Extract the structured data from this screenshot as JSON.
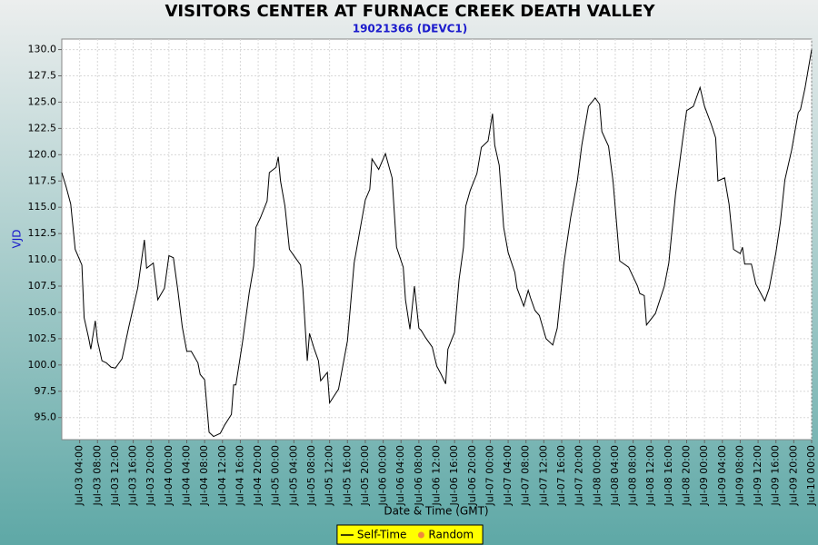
{
  "chart_data": {
    "type": "line",
    "title": "VISITORS CENTER AT FURNACE CREEK DEATH VALLEY",
    "subtitle": "19021366 (DEVC1)",
    "x_label": "Date & Time (GMT)",
    "y_label": "VJD",
    "x": [
      "Jul-03 00:00",
      "Jul-03 01:00",
      "Jul-03 02:00",
      "Jul-03 03:00",
      "Jul-03 04:30",
      "Jul-03 05:00",
      "Jul-03 06:00",
      "Jul-03 06:30",
      "Jul-03 07:30",
      "Jul-03 08:00",
      "Jul-03 09:00",
      "Jul-03 10:00",
      "Jul-03 11:00",
      "Jul-03 12:00",
      "Jul-03 13:30",
      "Jul-03 15:00",
      "Jul-03 17:00",
      "Jul-03 18:30",
      "Jul-03 19:00",
      "Jul-03 20:30",
      "Jul-03 21:30",
      "Jul-03 23:00",
      "Jul-04 00:00",
      "Jul-04 01:00",
      "Jul-04 02:00",
      "Jul-04 03:00",
      "Jul-04 04:00",
      "Jul-04 05:00",
      "Jul-04 06:30",
      "Jul-04 07:00",
      "Jul-04 08:00",
      "Jul-04 09:00",
      "Jul-04 10:00",
      "Jul-04 11:30",
      "Jul-04 12:30",
      "Jul-04 14:00",
      "Jul-04 14:30",
      "Jul-04 15:00",
      "Jul-04 16:30",
      "Jul-04 18:00",
      "Jul-04 19:00",
      "Jul-04 19:30",
      "Jul-04 20:30",
      "Jul-04 22:00",
      "Jul-04 22:30",
      "Jul-05 00:00",
      "Jul-05 00:30",
      "Jul-05 01:00",
      "Jul-05 02:00",
      "Jul-05 03:00",
      "Jul-05 04:00",
      "Jul-05 05:30",
      "Jul-05 06:00",
      "Jul-05 07:00",
      "Jul-05 07:30",
      "Jul-05 08:30",
      "Jul-05 09:30",
      "Jul-05 10:00",
      "Jul-05 11:30",
      "Jul-05 12:00",
      "Jul-05 14:00",
      "Jul-05 16:00",
      "Jul-05 17:30",
      "Jul-05 20:00",
      "Jul-05 21:00",
      "Jul-05 21:30",
      "Jul-05 23:00",
      "Jul-06 00:30",
      "Jul-06 02:00",
      "Jul-06 03:00",
      "Jul-06 04:30",
      "Jul-06 05:00",
      "Jul-06 06:00",
      "Jul-06 07:00",
      "Jul-06 08:00",
      "Jul-06 08:30",
      "Jul-06 09:30",
      "Jul-06 11:00",
      "Jul-06 12:00",
      "Jul-06 13:00",
      "Jul-06 14:00",
      "Jul-06 14:30",
      "Jul-06 16:00",
      "Jul-06 17:00",
      "Jul-06 18:00",
      "Jul-06 18:30",
      "Jul-06 19:30",
      "Jul-06 21:00",
      "Jul-06 22:00",
      "Jul-06 23:30",
      "Jul-07 00:30",
      "Jul-07 01:00",
      "Jul-07 02:00",
      "Jul-07 03:00",
      "Jul-07 04:00",
      "Jul-07 05:30",
      "Jul-07 06:00",
      "Jul-07 07:30",
      "Jul-07 08:30",
      "Jul-07 09:00",
      "Jul-07 10:00",
      "Jul-07 11:00",
      "Jul-07 12:30",
      "Jul-07 14:00",
      "Jul-07 15:00",
      "Jul-07 16:30",
      "Jul-07 18:00",
      "Jul-07 19:30",
      "Jul-07 20:30",
      "Jul-07 22:00",
      "Jul-07 23:30",
      "Jul-08 00:30",
      "Jul-08 01:00",
      "Jul-08 02:30",
      "Jul-08 03:30",
      "Jul-08 05:00",
      "Jul-08 07:00",
      "Jul-08 09:00",
      "Jul-08 09:30",
      "Jul-08 10:30",
      "Jul-08 11:00",
      "Jul-08 13:00",
      "Jul-08 14:00",
      "Jul-08 15:00",
      "Jul-08 16:00",
      "Jul-08 17:30",
      "Jul-08 19:00",
      "Jul-08 20:00",
      "Jul-08 21:30",
      "Jul-08 23:00",
      "Jul-09 00:00",
      "Jul-09 01:30",
      "Jul-09 02:30",
      "Jul-09 03:00",
      "Jul-09 04:30",
      "Jul-09 05:30",
      "Jul-09 06:30",
      "Jul-09 08:00",
      "Jul-09 08:30",
      "Jul-09 09:00",
      "Jul-09 10:30",
      "Jul-09 11:30",
      "Jul-09 13:30",
      "Jul-09 14:30",
      "Jul-09 16:00",
      "Jul-09 17:00",
      "Jul-09 18:00",
      "Jul-09 19:30",
      "Jul-09 21:00",
      "Jul-09 21:30",
      "Jul-09 22:30",
      "Jul-10 00:00"
    ],
    "series": [
      {
        "name": "Self-Time",
        "color": "#000000",
        "marker": "line",
        "values": [
          118.3,
          116.9,
          115.3,
          111.0,
          109.5,
          104.5,
          102.6,
          101.5,
          104.2,
          102.3,
          100.4,
          100.2,
          99.8,
          99.7,
          100.6,
          103.6,
          107.3,
          111.9,
          109.2,
          109.7,
          106.2,
          107.3,
          110.4,
          110.2,
          107.1,
          103.6,
          101.3,
          101.3,
          100.2,
          99.1,
          98.6,
          93.6,
          93.2,
          93.5,
          94.3,
          95.3,
          98.1,
          98.1,
          102.2,
          106.9,
          109.4,
          113.1,
          114.0,
          115.6,
          118.3,
          118.8,
          119.8,
          117.5,
          115.1,
          111.0,
          110.4,
          109.5,
          107.3,
          100.4,
          103.0,
          101.6,
          100.4,
          98.5,
          99.3,
          96.4,
          97.7,
          102.3,
          109.7,
          115.7,
          116.7,
          119.6,
          118.6,
          120.1,
          117.8,
          111.2,
          109.3,
          106.2,
          103.4,
          107.5,
          103.5,
          103.3,
          102.6,
          101.7,
          99.9,
          99.1,
          98.2,
          101.5,
          103.1,
          108.1,
          111.2,
          115.1,
          116.6,
          118.2,
          120.7,
          121.3,
          123.9,
          120.9,
          119.0,
          113.1,
          110.7,
          108.8,
          107.3,
          105.6,
          107.1,
          106.4,
          105.2,
          104.7,
          102.5,
          101.9,
          103.5,
          109.7,
          114.0,
          117.5,
          120.9,
          124.6,
          125.4,
          124.8,
          122.2,
          120.8,
          117.5,
          109.9,
          109.3,
          107.5,
          106.8,
          106.6,
          103.8,
          104.9,
          106.2,
          107.5,
          109.7,
          116.2,
          121.1,
          124.2,
          124.6,
          126.4,
          124.6,
          122.9,
          121.6,
          117.5,
          117.8,
          115.3,
          111.0,
          110.6,
          111.2,
          109.6,
          109.6,
          107.7,
          106.1,
          107.3,
          110.7,
          113.6,
          117.6,
          120.4,
          124.0,
          124.3,
          126.3,
          130.0
        ]
      },
      {
        "name": "Random",
        "color": "#f08a3c",
        "marker": "dot",
        "x": [],
        "values": []
      }
    ],
    "xlim": [
      "Jul-03 00:00",
      "Jul-10 00:00"
    ],
    "xticks": [
      "Jul-03 04:00",
      "Jul-03 08:00",
      "Jul-03 12:00",
      "Jul-03 16:00",
      "Jul-03 20:00",
      "Jul-04 00:00",
      "Jul-04 04:00",
      "Jul-04 08:00",
      "Jul-04 12:00",
      "Jul-04 16:00",
      "Jul-04 20:00",
      "Jul-05 00:00",
      "Jul-05 04:00",
      "Jul-05 08:00",
      "Jul-05 12:00",
      "Jul-05 16:00",
      "Jul-05 20:00",
      "Jul-06 00:00",
      "Jul-06 04:00",
      "Jul-06 08:00",
      "Jul-06 12:00",
      "Jul-06 16:00",
      "Jul-06 20:00",
      "Jul-07 00:00",
      "Jul-07 04:00",
      "Jul-07 08:00",
      "Jul-07 12:00",
      "Jul-07 16:00",
      "Jul-07 20:00",
      "Jul-08 00:00",
      "Jul-08 04:00",
      "Jul-08 08:00",
      "Jul-08 12:00",
      "Jul-08 16:00",
      "Jul-08 20:00",
      "Jul-09 00:00",
      "Jul-09 04:00",
      "Jul-09 08:00",
      "Jul-09 12:00",
      "Jul-09 16:00",
      "Jul-09 20:00",
      "Jul-10 00:00"
    ],
    "ylim": [
      92.9,
      131.0
    ],
    "yticks": [
      {
        "value": 95,
        "label": "95.0"
      },
      97.5,
      {
        "value": 100,
        "label": "100.0"
      },
      102.5,
      {
        "value": 105,
        "label": "105.0"
      },
      107.5,
      {
        "value": 110,
        "label": "110.0"
      },
      112.5,
      {
        "value": 115,
        "label": "115.0"
      },
      117.5,
      {
        "value": 120,
        "label": "120.0"
      },
      122.5,
      {
        "value": 125,
        "label": "125.0"
      },
      127.5,
      {
        "value": 130,
        "label": "130.0"
      }
    ],
    "grid": true,
    "legend": "bottom"
  }
}
